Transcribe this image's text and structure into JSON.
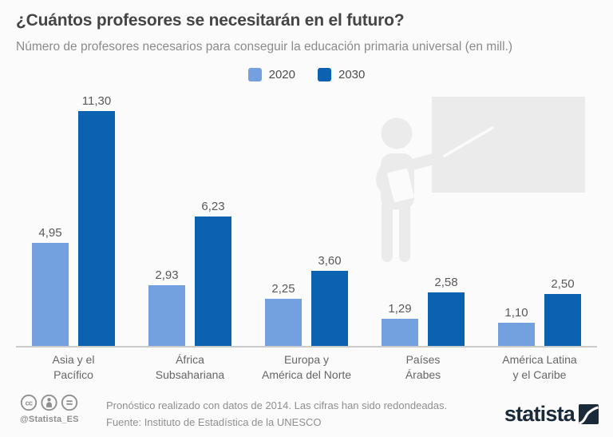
{
  "header": {
    "title": "¿Cuántos profesores se necesitarán en el futuro?",
    "subtitle": "Número de profesores necesarios para conseguir la educación primaria universal (en mill.)"
  },
  "legend": {
    "items": [
      {
        "label": "2020",
        "color": "#73a0df"
      },
      {
        "label": "2030",
        "color": "#0b62b0"
      }
    ]
  },
  "chart_data": {
    "type": "bar",
    "title": "¿Cuántos profesores se necesitarán en el futuro?",
    "subtitle": "Número de profesores necesarios para conseguir la educación primaria universal (en mill.)",
    "categories": [
      "Asia y el Pacífico",
      "África Subsahariana",
      "Europa y América del Norte",
      "Países Árabes",
      "América Latina y el Caribe"
    ],
    "category_lines": [
      [
        "Asia y el",
        "Pacífico"
      ],
      [
        "África",
        "Subsahariana"
      ],
      [
        "Europa y",
        "América del Norte"
      ],
      [
        "Países",
        "Árabes"
      ],
      [
        "América Latina",
        "y el Caribe"
      ]
    ],
    "series": [
      {
        "name": "2020",
        "color": "#73a0df",
        "values": [
          4.95,
          2.93,
          2.25,
          1.29,
          1.1
        ],
        "labels": [
          "4,95",
          "2,93",
          "2,25",
          "1,29",
          "1,10"
        ]
      },
      {
        "name": "2030",
        "color": "#0b62b0",
        "values": [
          11.3,
          6.23,
          3.6,
          2.58,
          2.5
        ],
        "labels": [
          "11,30",
          "6,23",
          "3,60",
          "2,58",
          "2,50"
        ]
      }
    ],
    "xlabel": "",
    "ylabel": "",
    "ylim": [
      0,
      11.3
    ],
    "grid": false,
    "legend_position": "top-center"
  },
  "footer": {
    "handle": "@Statista_ES",
    "note_line1": "Pronóstico realizado con datos de 2014. Las cifras han sido redondeadas.",
    "note_line2": "Fuente: Instituto de Estadística de la UNESCO",
    "brand": "statista"
  }
}
